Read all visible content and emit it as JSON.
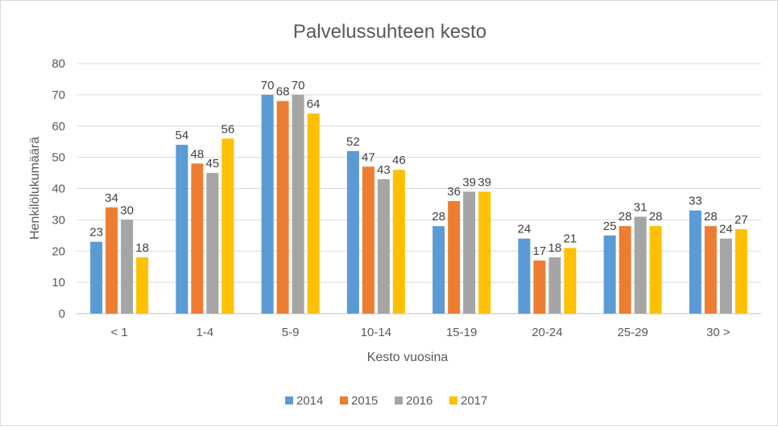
{
  "chart_data": {
    "type": "bar",
    "title": "Palvelussuhteen kesto",
    "xlabel": "Kesto vuosina",
    "ylabel": "Henkilölukumäärä",
    "ylim": [
      0,
      80
    ],
    "yticks": [
      0,
      10,
      20,
      30,
      40,
      50,
      60,
      70,
      80
    ],
    "grid": true,
    "legend_position": "bottom",
    "categories": [
      "< 1",
      "1-4",
      "5-9",
      "10-14",
      "15-19",
      "20-24",
      "25-29",
      "30 >"
    ],
    "series": [
      {
        "name": "2014",
        "color": "#5b9bd5",
        "values": [
          23,
          54,
          70,
          52,
          28,
          24,
          25,
          33
        ]
      },
      {
        "name": "2015",
        "color": "#ed7d31",
        "values": [
          34,
          48,
          68,
          47,
          36,
          17,
          28,
          28
        ]
      },
      {
        "name": "2016",
        "color": "#a5a5a5",
        "values": [
          30,
          45,
          70,
          43,
          39,
          18,
          31,
          24
        ]
      },
      {
        "name": "2017",
        "color": "#ffc000",
        "values": [
          18,
          56,
          64,
          46,
          39,
          21,
          28,
          27
        ]
      }
    ]
  }
}
